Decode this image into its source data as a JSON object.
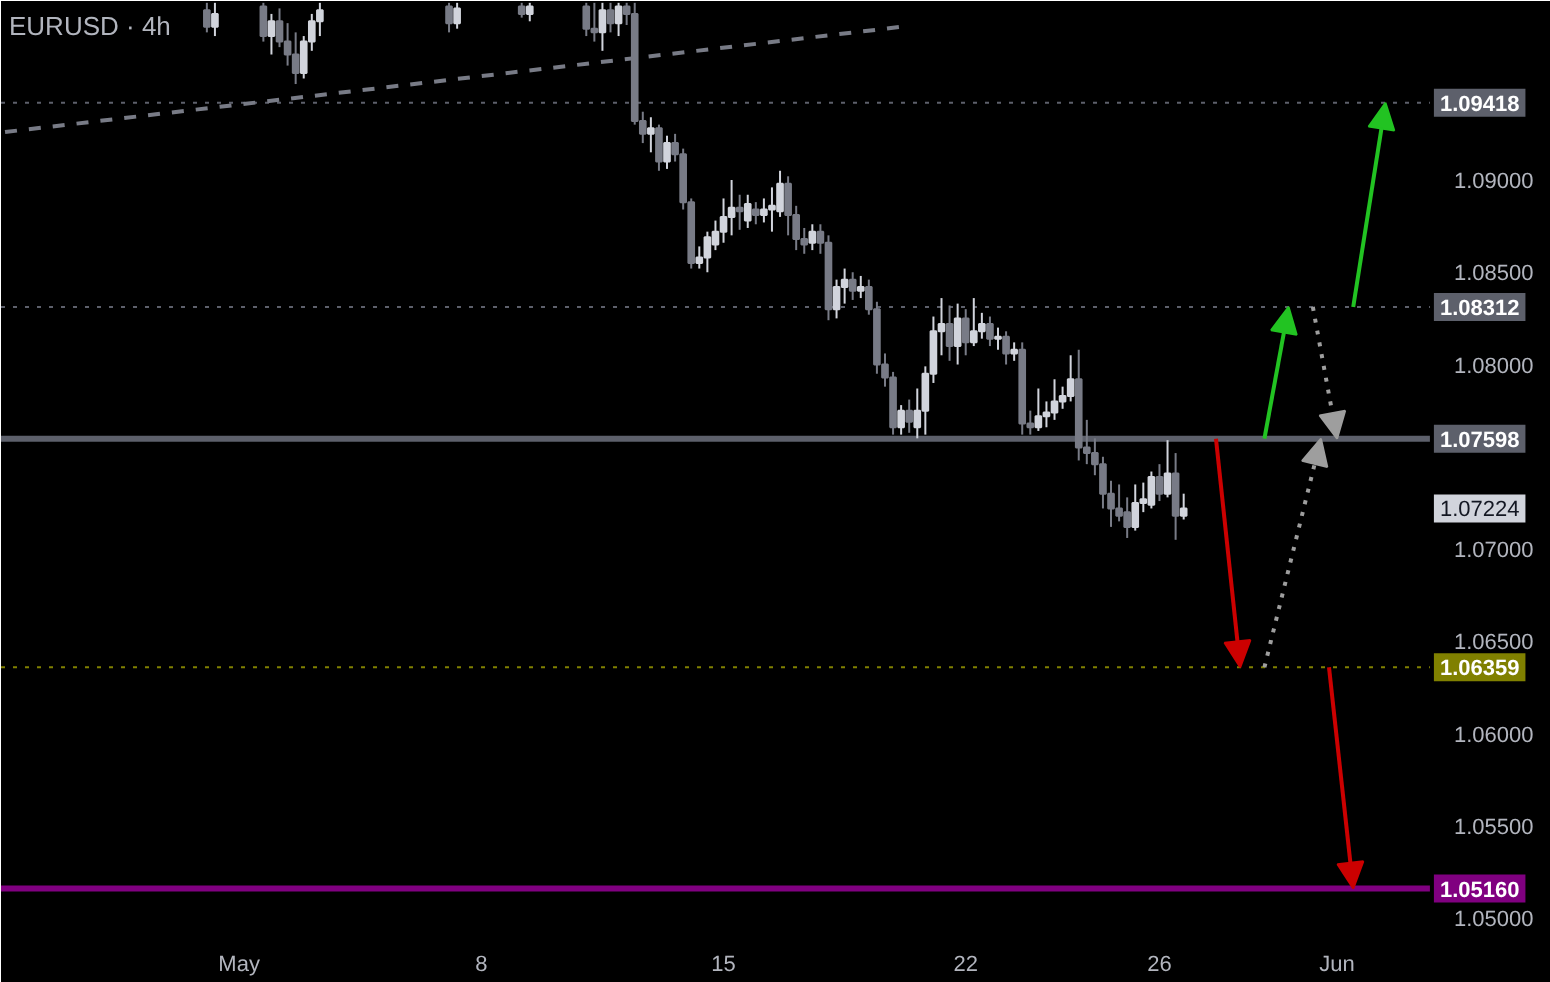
{
  "chart_data": {
    "type": "candlestick",
    "title": "EURUSD · 4h",
    "categories": [
      null,
      null,
      null,
      null,
      null,
      null,
      null,
      null,
      null,
      null,
      null,
      null,
      null,
      null,
      null,
      null,
      null,
      null,
      null,
      null,
      null,
      null,
      null,
      null,
      null,
      null,
      null,
      null,
      null,
      "May",
      null,
      null,
      null,
      null,
      null,
      null,
      null,
      null,
      null,
      null,
      null,
      null,
      null,
      null,
      null,
      null,
      null,
      null,
      null,
      null,
      null,
      null,
      null,
      null,
      null,
      null,
      null,
      null,
      null,
      "8",
      null,
      null,
      null,
      null,
      null,
      null,
      null,
      null,
      null,
      null,
      null,
      null,
      null,
      null,
      null,
      null,
      null,
      null,
      null,
      null,
      null,
      null,
      null,
      null,
      null,
      null,
      null,
      null,
      null,
      "15",
      null,
      null,
      null,
      null,
      null,
      null,
      null,
      null,
      null,
      null,
      null,
      null,
      null,
      null,
      null,
      null,
      null,
      null,
      null,
      null,
      null,
      null,
      null,
      null,
      null,
      null,
      null,
      null,
      null,
      "22",
      null,
      null,
      null,
      null,
      null,
      null,
      null,
      null,
      null,
      null,
      null,
      null,
      null,
      null,
      null,
      null,
      null,
      null,
      null,
      null,
      null,
      null,
      null,
      "26",
      null,
      null,
      null,
      null,
      null,
      null,
      null,
      null,
      null,
      null,
      null,
      null,
      null,
      null,
      null,
      null,
      null,
      null,
      null,
      null,
      null,
      "Jun",
      null,
      null,
      null,
      null,
      null,
      null,
      null,
      null,
      null,
      null,
      null
    ],
    "ohlc": [
      null,
      null,
      null,
      null,
      null,
      null,
      null,
      null,
      null,
      null,
      null,
      null,
      null,
      null,
      null,
      null,
      null,
      null,
      null,
      null,
      null,
      null,
      null,
      null,
      null,
      [
        1.0992,
        1.0996,
        1.098,
        1.0983
      ],
      [
        1.0983,
        1.0996,
        1.0978,
        1.099
      ],
      null,
      null,
      null,
      null,
      null,
      [
        1.0994,
        1.0996,
        1.0975,
        1.0978
      ],
      [
        1.0978,
        1.099,
        1.0968,
        1.0986
      ],
      [
        1.0986,
        1.0993,
        1.0972,
        1.0975
      ],
      [
        1.0975,
        1.0985,
        1.0962,
        1.0968
      ],
      [
        1.0968,
        1.098,
        1.0952,
        1.0958
      ],
      [
        1.0958,
        1.0978,
        1.0955,
        1.0975
      ],
      [
        1.0975,
        1.099,
        1.097,
        1.0986
      ],
      [
        1.0986,
        1.0996,
        1.0978,
        1.0992
      ],
      null,
      null,
      null,
      null,
      null,
      null,
      null,
      null,
      null,
      null,
      null,
      null,
      null,
      null,
      null,
      [
        1.0994,
        1.0996,
        1.098,
        1.0985
      ],
      [
        1.0985,
        1.0996,
        1.0982,
        1.0993
      ],
      null,
      null,
      null,
      null,
      null,
      null,
      null,
      [
        1.0994,
        1.0996,
        1.0988,
        1.099
      ],
      [
        1.099,
        1.0996,
        1.0986,
        1.0994
      ],
      null,
      null,
      null,
      null,
      null,
      null,
      [
        1.0994,
        1.0996,
        1.0978,
        1.0982
      ],
      [
        1.0982,
        1.0996,
        1.0975,
        1.098
      ],
      [
        1.098,
        1.0996,
        1.097,
        1.0992
      ],
      [
        1.0992,
        1.0996,
        1.098,
        1.0985
      ],
      [
        1.0985,
        1.0996,
        1.0978,
        1.0994
      ],
      [
        1.0994,
        1.0996,
        1.0984,
        1.099
      ],
      [
        1.099,
        1.0996,
        1.093,
        1.0932
      ],
      [
        1.0932,
        1.0937,
        1.092,
        1.0925
      ],
      [
        1.0925,
        1.0934,
        1.0915,
        1.0928
      ],
      [
        1.0928,
        1.093,
        1.0905,
        1.091
      ],
      [
        1.091,
        1.0924,
        1.0906,
        1.092
      ],
      [
        1.092,
        1.0925,
        1.091,
        1.0914
      ],
      [
        1.0914,
        1.0917,
        1.0884,
        1.0888
      ],
      [
        1.0888,
        1.089,
        1.0852,
        1.0855
      ],
      [
        1.0855,
        1.0864,
        1.0852,
        1.0858
      ],
      [
        1.0858,
        1.0872,
        1.085,
        1.0869
      ],
      [
        1.0865,
        1.0878,
        1.0862,
        1.0872
      ],
      [
        1.0872,
        1.089,
        1.0866,
        1.088
      ],
      [
        1.088,
        1.09,
        1.087,
        1.0885
      ],
      [
        1.0885,
        1.0892,
        1.0873,
        1.0883
      ],
      [
        1.0878,
        1.0892,
        1.0874,
        1.0887
      ],
      [
        1.0884,
        1.0888,
        1.0876,
        1.0881
      ],
      [
        1.0881,
        1.089,
        1.0877,
        1.0884
      ],
      [
        1.0884,
        1.0896,
        1.0872,
        1.0886
      ],
      [
        1.0883,
        1.0905,
        1.088,
        1.0898
      ],
      [
        1.0898,
        1.0902,
        1.087,
        1.0881
      ],
      [
        1.0881,
        1.0886,
        1.0862,
        1.0868
      ],
      [
        1.0868,
        1.0874,
        1.086,
        1.0865
      ],
      [
        1.0866,
        1.0876,
        1.0862,
        1.0872
      ],
      [
        1.0872,
        1.0876,
        1.086,
        1.0866
      ],
      [
        1.0866,
        1.087,
        1.0824,
        1.083
      ],
      [
        1.083,
        1.0846,
        1.0825,
        1.0842
      ],
      [
        1.0842,
        1.0852,
        1.0833,
        1.0846
      ],
      [
        1.0846,
        1.085,
        1.0835,
        1.084
      ],
      [
        1.084,
        1.0848,
        1.0836,
        1.0842
      ],
      [
        1.0842,
        1.0846,
        1.0827,
        1.083
      ],
      [
        1.083,
        1.0834,
        1.0795,
        1.08
      ],
      [
        1.08,
        1.0806,
        1.0788,
        1.0793
      ],
      [
        1.0793,
        1.0796,
        1.0762,
        1.0766
      ],
      [
        1.0766,
        1.0778,
        1.0762,
        1.0775
      ],
      [
        1.0775,
        1.0781,
        1.0763,
        1.0769
      ],
      [
        1.0766,
        1.0787,
        1.076,
        1.0775
      ],
      [
        1.0775,
        1.0799,
        1.0762,
        1.0795
      ],
      [
        1.0795,
        1.0826,
        1.079,
        1.0818
      ],
      [
        1.0818,
        1.0836,
        1.0805,
        1.0822
      ],
      [
        1.0822,
        1.0832,
        1.0802,
        1.081
      ],
      [
        1.081,
        1.0833,
        1.08,
        1.0825
      ],
      [
        1.0825,
        1.083,
        1.0805,
        1.0812
      ],
      [
        1.0812,
        1.0836,
        1.081,
        1.0818
      ],
      [
        1.0818,
        1.0828,
        1.0814,
        1.0822
      ],
      [
        1.0822,
        1.0826,
        1.081,
        1.0814
      ],
      [
        1.0814,
        1.082,
        1.0808,
        1.0815
      ],
      [
        1.0815,
        1.0818,
        1.08,
        1.0806
      ],
      [
        1.0806,
        1.0812,
        1.0802,
        1.0808
      ],
      [
        1.0808,
        1.0812,
        1.0762,
        1.0768
      ],
      [
        1.0768,
        1.0775,
        1.0762,
        1.0766
      ],
      [
        1.0766,
        1.0787,
        1.0764,
        1.0772
      ],
      [
        1.0772,
        1.078,
        1.0766,
        1.0774
      ],
      [
        1.0774,
        1.0792,
        1.077,
        1.078
      ],
      [
        1.078,
        1.0788,
        1.0776,
        1.0783
      ],
      [
        1.0783,
        1.0805,
        1.078,
        1.0792
      ],
      [
        1.0792,
        1.0808,
        1.0748,
        1.0755
      ],
      [
        1.0755,
        1.077,
        1.0746,
        1.0752
      ],
      [
        1.0752,
        1.076,
        1.074,
        1.0746
      ],
      [
        1.0746,
        1.075,
        1.0722,
        1.073
      ],
      [
        1.073,
        1.0737,
        1.0712,
        1.0722
      ],
      [
        1.0722,
        1.0735,
        1.0715,
        1.0718
      ],
      [
        1.072,
        1.0728,
        1.0706,
        1.0712
      ],
      [
        1.0712,
        1.0735,
        1.071,
        1.0725
      ],
      [
        1.0725,
        1.0736,
        1.072,
        1.0727
      ],
      [
        1.0724,
        1.0742,
        1.0722,
        1.0739
      ],
      [
        1.0739,
        1.0746,
        1.0726,
        1.073
      ],
      [
        1.073,
        1.0759,
        1.0728,
        1.0741
      ],
      [
        1.0741,
        1.0752,
        1.0705,
        1.0718
      ],
      [
        1.0718,
        1.073,
        1.0716,
        1.0722
      ],
      null,
      null,
      null,
      null,
      null,
      null,
      null,
      null,
      null,
      null,
      null,
      null,
      null,
      null,
      null,
      null,
      null,
      null,
      null,
      null,
      null,
      null,
      null,
      null,
      null,
      null,
      null,
      null,
      null,
      null
    ],
    "series": [
      {
        "type": "line",
        "color": "#787b86",
        "line_style": "dashed",
        "values": [
          1.0926,
          null,
          null,
          null,
          null,
          null,
          null,
          null,
          null,
          null,
          null,
          null,
          null,
          null,
          null,
          null,
          null,
          null,
          null,
          null,
          null,
          null,
          null,
          null,
          null,
          null,
          null,
          null,
          null,
          null,
          null,
          null,
          null,
          null,
          null,
          null,
          null,
          null,
          null,
          null,
          null,
          null,
          null,
          null,
          null,
          null,
          null,
          null,
          null,
          null,
          null,
          null,
          null,
          null,
          null,
          null,
          null,
          null,
          null,
          null,
          null,
          null,
          null,
          null,
          null,
          null,
          null,
          null,
          null,
          null,
          null,
          null,
          null,
          null,
          null,
          null,
          null,
          null,
          null,
          null,
          null,
          null,
          null,
          null,
          null,
          null,
          null,
          null,
          null,
          null,
          null,
          null,
          null,
          null,
          null,
          null,
          null,
          null,
          null,
          null,
          null,
          null,
          null,
          null,
          null,
          null,
          null,
          null,
          null,
          null,
          null,
          1.0983,
          null,
          null,
          null,
          null,
          null,
          null,
          null,
          null,
          null,
          null,
          null,
          null,
          null,
          null,
          null,
          null,
          null,
          null,
          null,
          null,
          null,
          null,
          null,
          null,
          null,
          null,
          null,
          null,
          null,
          null,
          null,
          null,
          null,
          null,
          null,
          null,
          null,
          null,
          null,
          null,
          null,
          null,
          null,
          null,
          null,
          null,
          null,
          null,
          null,
          null,
          null,
          null,
          null,
          null,
          null,
          null,
          null,
          null,
          null,
          null,
          null,
          null,
          null,
          null,
          null
        ]
      }
    ],
    "ref_lines": [
      {
        "axis": "y",
        "value": 1.09418,
        "label": "1.09418",
        "color": "#5d606b",
        "line_style": "dotted"
      },
      {
        "axis": "y",
        "value": 1.08312,
        "label": "1.08312",
        "color": "#5d606b",
        "line_style": "dotted"
      },
      {
        "axis": "y",
        "value": 1.07598,
        "label": "1.07598",
        "color": "#5d606b",
        "line_style": "solid"
      },
      {
        "axis": "y",
        "value": 1.06359,
        "label": "1.06359",
        "color": "#808000",
        "line_style": "dotted"
      },
      {
        "axis": "y",
        "value": 1.0516,
        "label": "1.05160",
        "color": "#800080",
        "line_style": "solid"
      }
    ],
    "annotations": [
      "1.07224"
    ],
    "ylim": [
      1.0493,
      1.0997
    ],
    "yticks": [
      {
        "value": 1.05,
        "label": "1.05000"
      },
      {
        "value": 1.055,
        "label": "1.05500"
      },
      {
        "value": 1.06,
        "label": "1.06000"
      },
      {
        "value": 1.065,
        "label": "1.06500"
      },
      {
        "value": 1.07,
        "label": "1.07000"
      },
      {
        "value": 1.08,
        "label": "1.08000"
      },
      {
        "value": 1.085,
        "label": "1.08500"
      },
      {
        "value": 1.09,
        "label": "1.09000"
      }
    ],
    "grid": false
  }
}
